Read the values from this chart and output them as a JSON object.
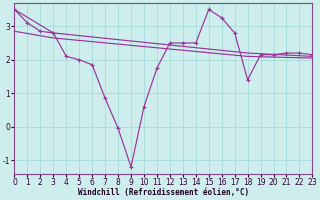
{
  "background_color": "#cdeeed",
  "grid_color": "#aadddc",
  "line_color": "#993399",
  "xlabel": "Windchill (Refroidissement éolien,°C)",
  "xlim": [
    0,
    23
  ],
  "ylim": [
    -1.4,
    3.7
  ],
  "yticks": [
    -1,
    0,
    1,
    2,
    3
  ],
  "xticks": [
    0,
    1,
    2,
    3,
    4,
    5,
    6,
    7,
    8,
    9,
    10,
    11,
    12,
    13,
    14,
    15,
    16,
    17,
    18,
    19,
    20,
    21,
    22,
    23
  ],
  "series1_x": [
    0,
    1,
    2,
    3,
    4,
    5,
    6,
    7,
    8,
    9,
    10,
    11,
    12,
    13,
    14,
    15,
    16,
    17,
    18,
    19,
    20,
    21,
    22,
    23
  ],
  "series1_y": [
    3.5,
    3.1,
    2.85,
    2.8,
    2.1,
    2.0,
    1.85,
    0.85,
    -0.05,
    -1.2,
    0.6,
    1.75,
    2.5,
    2.5,
    2.5,
    3.5,
    3.25,
    2.8,
    1.4,
    2.15,
    2.15,
    2.2,
    2.2,
    2.15
  ],
  "series2_x": [
    0,
    3,
    18,
    23
  ],
  "series2_y": [
    3.5,
    2.8,
    2.2,
    2.1
  ],
  "series3_x": [
    0,
    3,
    18,
    23
  ],
  "series3_y": [
    2.85,
    2.65,
    2.1,
    2.05
  ],
  "xlabel_fontsize": 5.5,
  "tick_fontsize": 5.5
}
